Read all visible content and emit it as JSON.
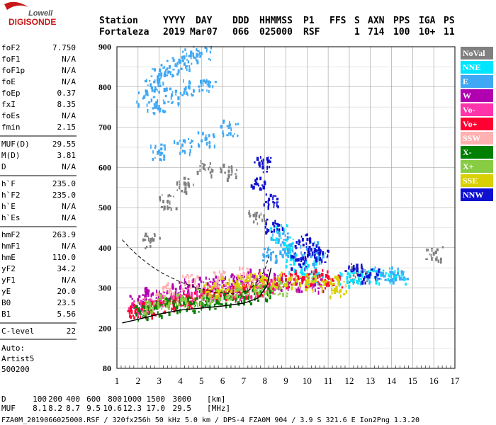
{
  "logo": {
    "line1": "Lowell",
    "line2": "DIGISONDE"
  },
  "header": {
    "labels": [
      "Station",
      "YYYY",
      "DAY",
      "DDD",
      "HHMMSS",
      "P1",
      "FFS",
      "S",
      "AXN",
      "PPS",
      "IGA",
      "PS"
    ],
    "values": [
      "Fortaleza",
      "2019",
      "Mar07",
      "066",
      "025000",
      "RSF",
      "",
      "1",
      "714",
      "100",
      "10+",
      "11"
    ]
  },
  "params": [
    {
      "name": "foF2",
      "value": "7.750"
    },
    {
      "name": "foF1",
      "value": "N/A"
    },
    {
      "name": "foF1p",
      "value": "N/A"
    },
    {
      "name": "foE",
      "value": "N/A"
    },
    {
      "name": "foEp",
      "value": "0.37"
    },
    {
      "name": "fxI",
      "value": "8.35"
    },
    {
      "name": "foEs",
      "value": "N/A"
    },
    {
      "name": "fmin",
      "value": "2.15"
    },
    {
      "name": "MUF(D)",
      "value": "29.55"
    },
    {
      "name": "M(D)",
      "value": "3.81"
    },
    {
      "name": "D",
      "value": "N/A"
    },
    {
      "name": "h`F",
      "value": "235.0"
    },
    {
      "name": "h`F2",
      "value": "235.0"
    },
    {
      "name": "h`E",
      "value": "N/A"
    },
    {
      "name": "h`Es",
      "value": "N/A"
    },
    {
      "name": "hmF2",
      "value": "263.9"
    },
    {
      "name": "hmF1",
      "value": "N/A"
    },
    {
      "name": "hmE",
      "value": "110.0"
    },
    {
      "name": "yF2",
      "value": "34.2"
    },
    {
      "name": "yF1",
      "value": "N/A"
    },
    {
      "name": "yE",
      "value": "20.0"
    },
    {
      "name": "B0",
      "value": "23.5"
    },
    {
      "name": "B1",
      "value": "5.56"
    },
    {
      "name": "C-level",
      "value": "22"
    }
  ],
  "auto": {
    "line1": "Auto:",
    "line2": "Artist5",
    "line3": "500200"
  },
  "legend": [
    {
      "label": "NoVal",
      "color": "#808080"
    },
    {
      "label": "NNE",
      "color": "#00e5ff"
    },
    {
      "label": "E",
      "color": "#3fa9f5"
    },
    {
      "label": "W",
      "color": "#b000b0"
    },
    {
      "label": "Vo-",
      "color": "#ff33aa"
    },
    {
      "label": "Vo+",
      "color": "#ff0033"
    },
    {
      "label": "SSW",
      "color": "#ffb0b0"
    },
    {
      "label": "X-",
      "color": "#008000"
    },
    {
      "label": "X+",
      "color": "#88cc44"
    },
    {
      "label": "SSE",
      "color": "#d8d000"
    },
    {
      "label": "NNW",
      "color": "#1010d0"
    }
  ],
  "muf_table": {
    "d_label": "D",
    "d_values": [
      "100",
      "200",
      "400",
      "600",
      "800",
      "1000",
      "1500",
      "3000"
    ],
    "d_unit": "[km]",
    "muf_label": "MUF",
    "muf_values": [
      "8.1",
      "8.2",
      "8.7",
      "9.5",
      "10.6",
      "12.3",
      "17.0",
      "29.5"
    ],
    "muf_unit": "[MHz]"
  },
  "footer": "FZA0M_2019066025000.RSF / 320fx256h 50 kHz 5.0 km / DPS-4 FZA0M 904 / 3.9 S 321.6 E   Ion2Png 1.3.20",
  "chart_data": {
    "type": "scatter",
    "title": "",
    "xlabel": "",
    "ylabel": "",
    "xlim": [
      1,
      17
    ],
    "ylim": [
      80,
      900
    ],
    "x_ticks": [
      1,
      2,
      3,
      4,
      5,
      6,
      7,
      8,
      9,
      10,
      11,
      12,
      13,
      14,
      15,
      16,
      17
    ],
    "y_ticks": [
      80,
      200,
      300,
      400,
      500,
      600,
      700,
      800,
      900
    ],
    "grid": true,
    "legend_position": "right",
    "series": [
      {
        "name": "NoVal",
        "points": [
          [
            2.6,
            420
          ],
          [
            3.4,
            515
          ],
          [
            4.2,
            560
          ],
          [
            5.1,
            600
          ],
          [
            6.3,
            590
          ],
          [
            7.6,
            480
          ],
          [
            12.4,
            335
          ],
          [
            16.0,
            385
          ]
        ]
      },
      {
        "name": "NNE",
        "points": [
          [
            8.6,
            440
          ],
          [
            8.9,
            410
          ],
          [
            9.2,
            390
          ],
          [
            9.4,
            360
          ],
          [
            10.0,
            350
          ],
          [
            10.3,
            325
          ],
          [
            11.9,
            325
          ],
          [
            12.8,
            330
          ],
          [
            13.5,
            332
          ],
          [
            14.2,
            330
          ]
        ]
      },
      {
        "name": "E",
        "points": [
          [
            2.3,
            775
          ],
          [
            2.6,
            805
          ],
          [
            3.0,
            830
          ],
          [
            3.5,
            850
          ],
          [
            4.0,
            862
          ],
          [
            4.5,
            878
          ],
          [
            5.0,
            883
          ],
          [
            2.8,
            750
          ],
          [
            3.6,
            780
          ],
          [
            4.4,
            800
          ],
          [
            5.2,
            812
          ],
          [
            3.0,
            640
          ],
          [
            4.1,
            655
          ],
          [
            5.2,
            672
          ],
          [
            6.3,
            700
          ],
          [
            8.3,
            385
          ],
          [
            8.7,
            430
          ],
          [
            9.1,
            395
          ],
          [
            10.1,
            400
          ],
          [
            10.5,
            375
          ],
          [
            12.9,
            330
          ],
          [
            13.6,
            335
          ],
          [
            14.3,
            335
          ]
        ]
      },
      {
        "name": "W",
        "points": [
          [
            2.0,
            270
          ],
          [
            2.7,
            285
          ],
          [
            3.4,
            290
          ],
          [
            4.0,
            300
          ],
          [
            4.6,
            305
          ],
          [
            5.3,
            310
          ],
          [
            6.0,
            315
          ],
          [
            6.7,
            320
          ],
          [
            7.4,
            330
          ],
          [
            8.1,
            330
          ],
          [
            8.8,
            315
          ],
          [
            9.5,
            310
          ],
          [
            10.3,
            310
          ]
        ]
      },
      {
        "name": "Vo-",
        "points": [
          [
            1.9,
            250
          ],
          [
            2.4,
            260
          ],
          [
            3.0,
            268
          ],
          [
            3.6,
            275
          ],
          [
            4.3,
            280
          ],
          [
            5.0,
            285
          ],
          [
            5.7,
            290
          ],
          [
            6.5,
            295
          ],
          [
            7.3,
            300
          ],
          [
            8.0,
            305
          ]
        ]
      },
      {
        "name": "Vo+",
        "points": [
          [
            1.7,
            240
          ],
          [
            2.2,
            248
          ],
          [
            2.8,
            255
          ],
          [
            3.4,
            262
          ],
          [
            4.0,
            268
          ],
          [
            4.7,
            272
          ],
          [
            5.4,
            280
          ],
          [
            6.1,
            286
          ],
          [
            6.8,
            292
          ],
          [
            7.5,
            298
          ],
          [
            8.2,
            310
          ],
          [
            9.0,
            320
          ],
          [
            9.8,
            325
          ],
          [
            10.6,
            330
          ],
          [
            11.2,
            320
          ]
        ]
      },
      {
        "name": "SSW",
        "points": [
          [
            3.2,
            300
          ],
          [
            4.4,
            315
          ],
          [
            5.8,
            325
          ],
          [
            7.0,
            335
          ]
        ]
      },
      {
        "name": "X-",
        "points": [
          [
            2.1,
            240
          ],
          [
            2.9,
            250
          ],
          [
            3.7,
            258
          ],
          [
            4.5,
            262
          ],
          [
            5.3,
            268
          ],
          [
            6.1,
            275
          ],
          [
            6.9,
            282
          ],
          [
            7.8,
            290
          ]
        ]
      },
      {
        "name": "X+",
        "points": [
          [
            2.4,
            258
          ],
          [
            3.3,
            266
          ],
          [
            4.2,
            272
          ],
          [
            5.1,
            280
          ],
          [
            6.0,
            290
          ],
          [
            6.9,
            298
          ],
          [
            7.8,
            305
          ],
          [
            8.6,
            300
          ]
        ]
      },
      {
        "name": "SSE",
        "points": [
          [
            5.5,
            300
          ],
          [
            6.3,
            310
          ],
          [
            7.1,
            318
          ],
          [
            7.9,
            325
          ],
          [
            8.7,
            322
          ],
          [
            9.5,
            318
          ],
          [
            10.3,
            315
          ],
          [
            11.1,
            312
          ],
          [
            11.4,
            300
          ]
        ]
      },
      {
        "name": "NNW",
        "points": [
          [
            7.6,
            560
          ],
          [
            7.9,
            610
          ],
          [
            8.2,
            520
          ],
          [
            8.4,
            460
          ],
          [
            9.8,
            420
          ],
          [
            10.2,
            395
          ],
          [
            10.6,
            385
          ],
          [
            9.6,
            370
          ],
          [
            12.2,
            345
          ],
          [
            13.0,
            335
          ]
        ]
      }
    ],
    "profile_solid": [
      [
        1.25,
        213
      ],
      [
        2.0,
        222
      ],
      [
        3.0,
        235
      ],
      [
        4.0,
        245
      ],
      [
        5.0,
        250
      ],
      [
        6.0,
        255
      ],
      [
        7.0,
        262
      ],
      [
        7.7,
        275
      ],
      [
        8.1,
        305
      ],
      [
        8.3,
        350
      ]
    ],
    "profile_dashed": [
      [
        1.25,
        420
      ],
      [
        1.6,
        400
      ],
      [
        2.0,
        380
      ],
      [
        2.6,
        355
      ],
      [
        3.2,
        335
      ],
      [
        4.0,
        315
      ],
      [
        4.8,
        300
      ],
      [
        5.6,
        290
      ],
      [
        6.5,
        285
      ],
      [
        7.2,
        292
      ],
      [
        7.7,
        318
      ],
      [
        8.0,
        345
      ],
      [
        8.2,
        380
      ]
    ]
  }
}
